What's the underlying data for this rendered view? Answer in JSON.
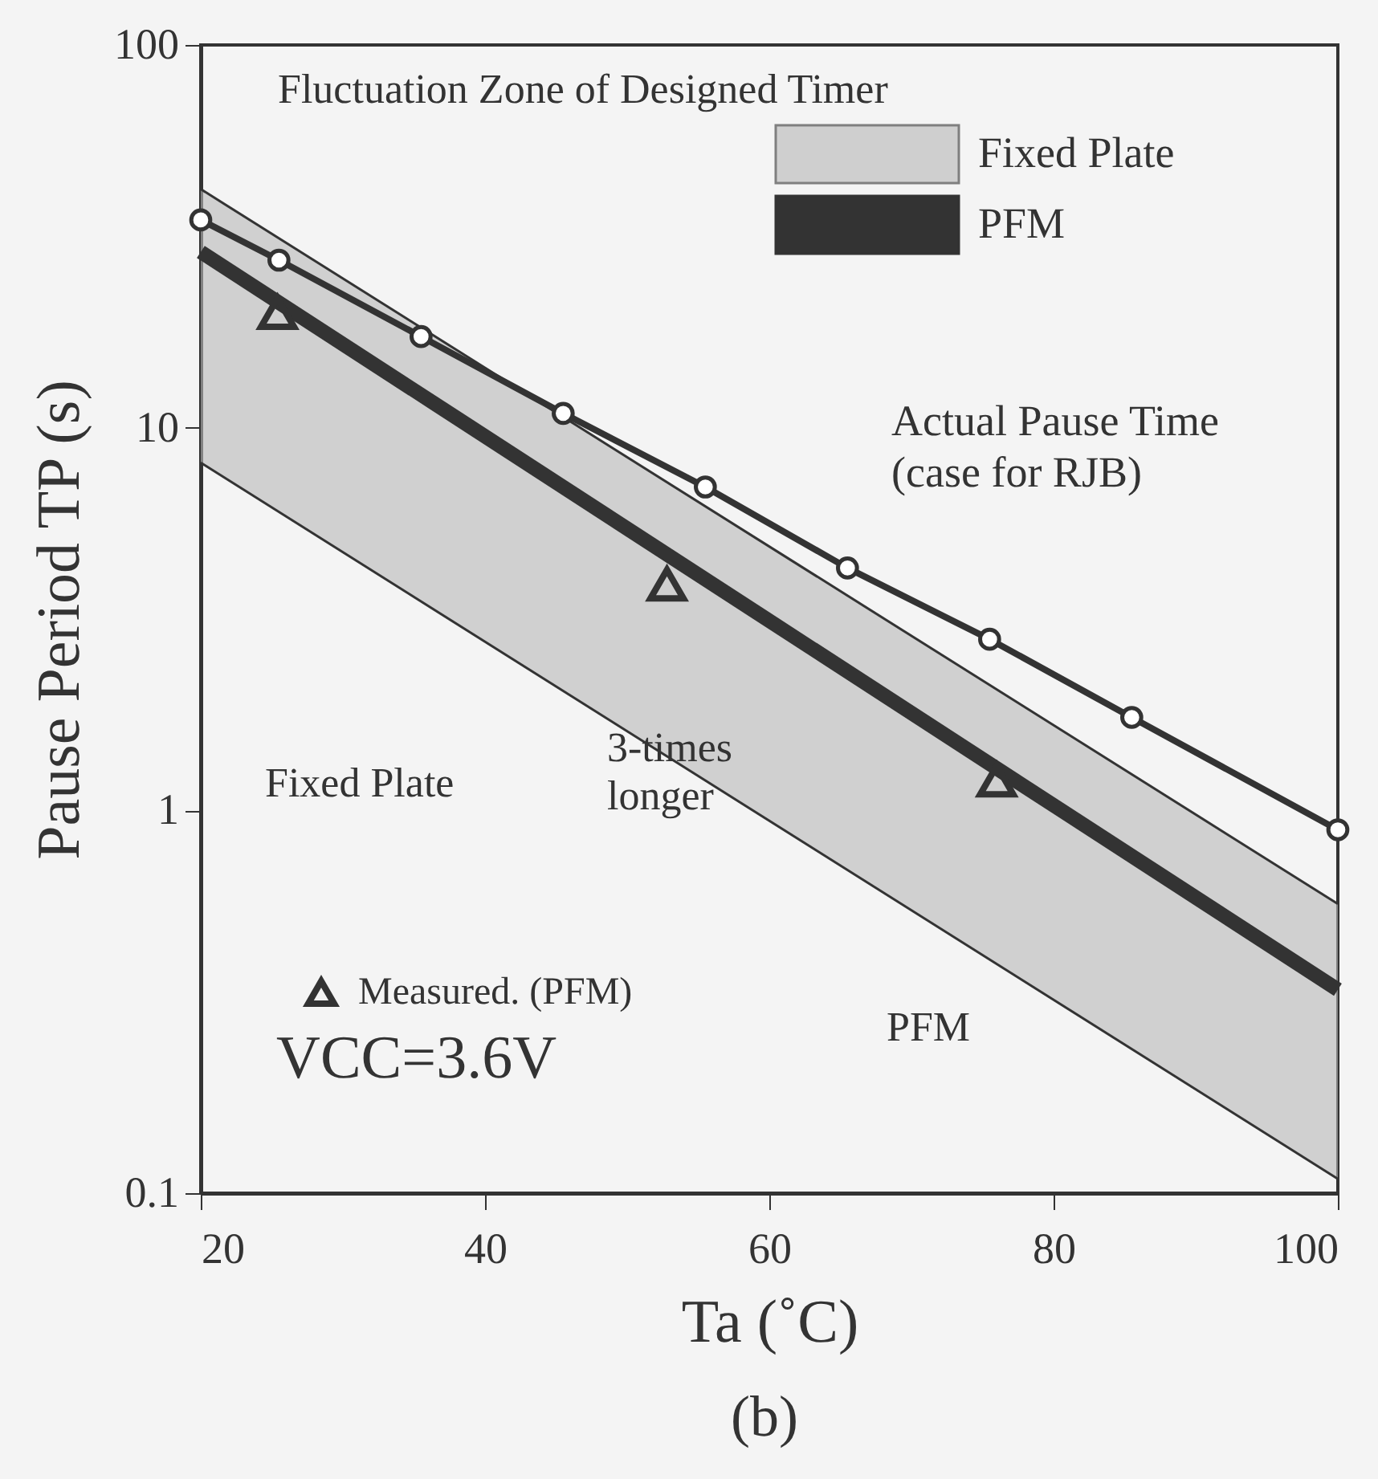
{
  "chart_data": {
    "type": "line",
    "xlabel": "Ta (˚C)",
    "ylabel": "Pause Period TP (s)",
    "legend_title": "Fluctuation Zone of Designed Timer",
    "legend": "top right",
    "log": "y",
    "grid": false,
    "xlim": [
      20,
      100
    ],
    "ylim": [
      0.1,
      100
    ],
    "xticks": [
      20,
      40,
      60,
      80,
      100
    ],
    "yticks": [
      0.1,
      1,
      10,
      100
    ],
    "series": [
      {
        "name": "Fixed Plate",
        "type": "area",
        "color": "#b8b8b8",
        "x": [
          20,
          100
        ],
        "values": [
          42,
          0.57
        ]
      },
      {
        "color": "#333333",
        "x": [
          20,
          100
        ],
        "values": [
          8.1,
          0.109
        ],
        "marker": "none",
        "line_style": "solid"
      },
      {
        "name": "PFM",
        "color": "#333333",
        "x": [
          20,
          100
        ],
        "values": [
          28.8,
          0.34
        ],
        "marker": "none"
      },
      {
        "name": "Actual Pause Time (case for RJB)",
        "color": "#333333",
        "x": [
          20,
          25.5,
          35.5,
          45.5,
          55.5,
          65.5,
          75.5,
          85.5,
          100
        ],
        "values": [
          34.9,
          27.4,
          17.3,
          10.9,
          7.0,
          4.3,
          2.8,
          1.75,
          0.89
        ],
        "marker": "circle"
      },
      {
        "name": "Measured. (PFM)",
        "type": "scatter",
        "color": "#333333",
        "x": [
          25.4,
          52.8,
          76
        ],
        "values": [
          20,
          3.9,
          1.2
        ],
        "marker": "triangle"
      }
    ],
    "annotations": [
      "Fixed Plate",
      "3-times\nlonger",
      "PFM",
      "VCC=3.6V",
      "(b)"
    ]
  }
}
